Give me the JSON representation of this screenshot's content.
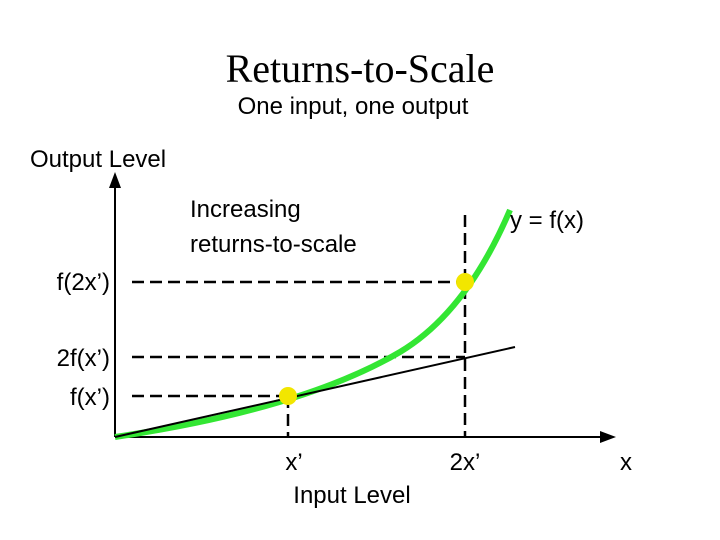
{
  "title": "Returns-to-Scale",
  "subtitle": "One input, one output",
  "y_axis_label": "Output Level",
  "x_axis_label": "Input Level",
  "annotation": [
    "Increasing",
    "returns-to-scale"
  ],
  "curve_label": "y = f(x)",
  "y_labels": [
    "f(2x’)",
    "2f(x’)",
    "f(x’)"
  ],
  "x_labels": [
    "x’",
    "2x’",
    "x"
  ]
}
